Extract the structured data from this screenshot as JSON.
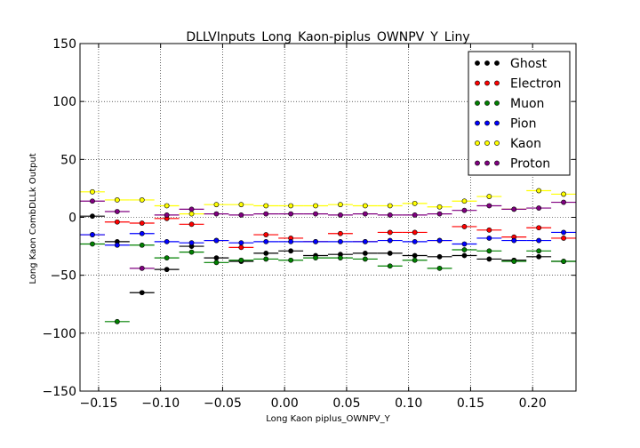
{
  "chart_data": {
    "type": "scatter",
    "title": "DLLVInputs_Long_Kaon-piplus_OWNPV_Y_Liny",
    "xlabel": "Long Kaon piplus_OWNPV_Y",
    "ylabel": "Long Kaon CombDLLk Output",
    "xlim": [
      -0.165,
      0.235
    ],
    "ylim": [
      -150,
      150
    ],
    "xticks": [
      -0.15,
      -0.1,
      -0.05,
      0.0,
      0.05,
      0.1,
      0.15,
      0.2
    ],
    "xtick_labels": [
      "−0.15",
      "−0.10",
      "−0.05",
      "0.00",
      "0.05",
      "0.10",
      "0.15",
      "0.20"
    ],
    "yticks": [
      -150,
      -100,
      -50,
      0,
      50,
      100,
      150
    ],
    "ytick_labels": [
      "−150",
      "−100",
      "−50",
      "0",
      "50",
      "100",
      "150"
    ],
    "grid": true,
    "legend_position": "top-right",
    "x": [
      -0.155,
      -0.135,
      -0.115,
      -0.095,
      -0.075,
      -0.055,
      -0.035,
      -0.015,
      0.005,
      0.025,
      0.045,
      0.065,
      0.085,
      0.105,
      0.125,
      0.145,
      0.165,
      0.185,
      0.205,
      0.225
    ],
    "x_halfwidth": 0.01,
    "series": [
      {
        "name": "Ghost",
        "color": "#000000",
        "values": [
          1,
          -21,
          -65,
          -45,
          -25,
          -35,
          -38,
          -31,
          -29,
          -33,
          -32,
          -31,
          -31,
          -33,
          -34,
          -33,
          -36,
          -37,
          -34,
          -38
        ]
      },
      {
        "name": "Electron",
        "color": "#ff0000",
        "values": [
          -15,
          -4,
          -5,
          -1,
          -6,
          -20,
          -26,
          -15,
          -18,
          -21,
          -14,
          -21,
          -13,
          -13,
          -20,
          -8,
          -11,
          -17,
          -9,
          -18
        ]
      },
      {
        "name": "Muon",
        "color": "#008000",
        "values": [
          -23,
          -90,
          -24,
          -35,
          -30,
          -39,
          -37,
          -36,
          -37,
          -35,
          -35,
          -36,
          -42,
          -37,
          -44,
          -28,
          -29,
          -38,
          -29,
          -38
        ]
      },
      {
        "name": "Pion",
        "color": "#0000ff",
        "values": [
          -15,
          -24,
          -14,
          -21,
          -22,
          -20,
          -22,
          -21,
          -21,
          -21,
          -21,
          -21,
          -20,
          -21,
          -20,
          -23,
          -18,
          -20,
          -20,
          -13
        ]
      },
      {
        "name": "Kaon",
        "color": "#ffff00",
        "values": [
          22,
          15,
          15,
          10,
          3,
          11,
          11,
          10,
          10,
          10,
          11,
          10,
          10,
          12,
          9,
          14,
          18,
          7,
          23,
          20
        ]
      },
      {
        "name": "Proton",
        "color": "#800080",
        "values": [
          14,
          5,
          -44,
          2,
          7,
          3,
          2,
          3,
          3,
          3,
          2,
          3,
          2,
          2,
          3,
          6,
          10,
          7,
          8,
          13
        ]
      }
    ]
  }
}
